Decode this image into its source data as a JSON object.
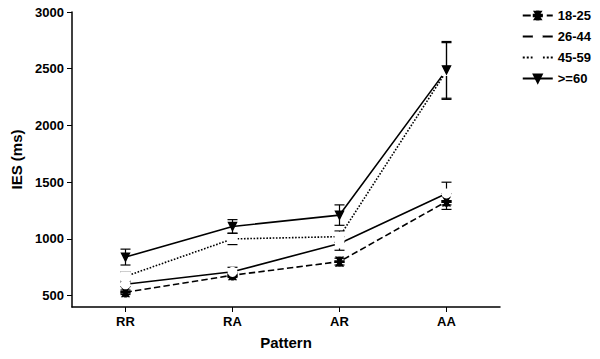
{
  "chart_data": {
    "type": "line",
    "x_label": "Pattern",
    "y_label": "IES (ms)",
    "categories": [
      "RR",
      "RA",
      "AR",
      "AA"
    ],
    "ylim": [
      400,
      3000
    ],
    "yticks": [
      500,
      1000,
      1500,
      2000,
      2500,
      3000
    ],
    "grid": false,
    "legend": "upper right",
    "series": [
      {
        "name": "18-25",
        "color": "#000000",
        "marker": "asterisk",
        "line_style": "dashed",
        "values": [
          530,
          680,
          800,
          1330
        ],
        "errors": [
          20,
          20,
          30,
          70
        ]
      },
      {
        "name": "26-44",
        "color": "#000000",
        "marker": "circle",
        "line_style": "solid",
        "values": [
          600,
          710,
          960,
          1400
        ],
        "errors": [
          20,
          40,
          60,
          100
        ]
      },
      {
        "name": "45-59",
        "color": "#000000",
        "marker": "square",
        "line_style": "dotted",
        "values": [
          670,
          1000,
          1020,
          2480
        ],
        "errors": [
          40,
          50,
          50,
          250
        ]
      },
      {
        "name": ">=60",
        "color": "#000000",
        "marker": "triangle-down",
        "line_style": "solid",
        "values": [
          840,
          1110,
          1210,
          2490
        ],
        "errors": [
          70,
          60,
          90,
          250
        ]
      }
    ]
  }
}
